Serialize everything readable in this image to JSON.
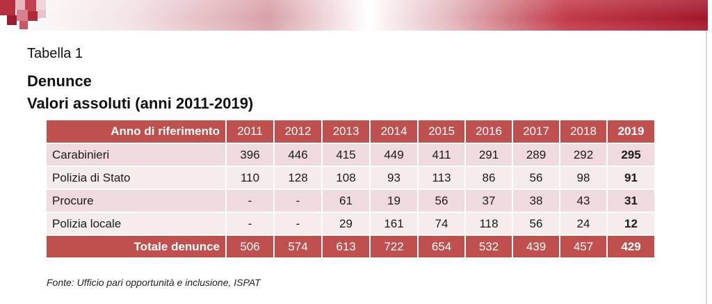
{
  "table_label": "Tabella 1",
  "title_line1": "Denunce",
  "title_line2": "Valori assoluti (anni 2011-2019)",
  "colors": {
    "header_red": "#c0504d",
    "row_dark": "#efdbdd",
    "row_light": "#f6ecec",
    "banner_red": "#a3162a"
  },
  "table": {
    "header": {
      "label": "Anno di riferimento",
      "years": [
        "2011",
        "2012",
        "2013",
        "2014",
        "2015",
        "2016",
        "2017",
        "2018",
        "2019"
      ]
    },
    "rows": [
      {
        "label": "Carabinieri",
        "values": [
          "396",
          "446",
          "415",
          "449",
          "411",
          "291",
          "289",
          "292",
          "295"
        ]
      },
      {
        "label": "Polizia di Stato",
        "values": [
          "110",
          "128",
          "108",
          "93",
          "113",
          "86",
          "56",
          "98",
          "91"
        ]
      },
      {
        "label": "Procure",
        "values": [
          "-",
          "-",
          "61",
          "19",
          "56",
          "37",
          "38",
          "43",
          "31"
        ]
      },
      {
        "label": "Polizia locale",
        "values": [
          "-",
          "-",
          "29",
          "161",
          "74",
          "118",
          "56",
          "24",
          "12"
        ]
      }
    ],
    "total": {
      "label": "Totale denunce",
      "values": [
        "506",
        "574",
        "613",
        "722",
        "654",
        "532",
        "439",
        "457",
        "429"
      ]
    }
  },
  "source": "Fonte: Ufficio pari opportunità e inclusione, ISPAT"
}
